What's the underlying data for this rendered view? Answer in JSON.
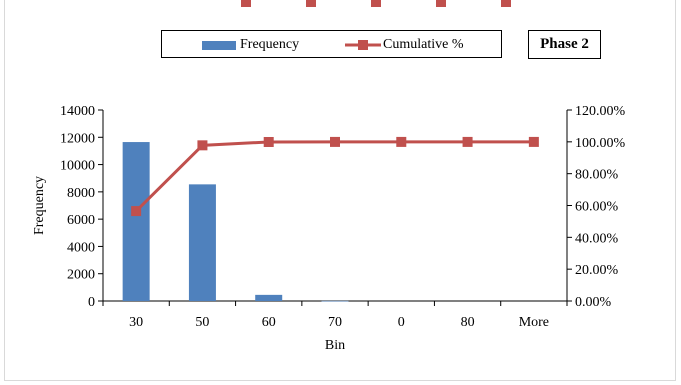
{
  "chart_data": {
    "type": "bar",
    "title": "",
    "annotation": "Phase 2",
    "xlabel": "Bin",
    "ylabel": "Frequency",
    "categories": [
      "30",
      "50",
      "60",
      "70",
      "0",
      "80",
      "More"
    ],
    "ylim": [
      0,
      14000
    ],
    "y_ticks": [
      "0",
      "2000",
      "4000",
      "6000",
      "8000",
      "10000",
      "12000",
      "14000"
    ],
    "y2lim": [
      0,
      120
    ],
    "y2_ticks": [
      "0.00%",
      "20.00%",
      "40.00%",
      "60.00%",
      "80.00%",
      "100.00%",
      "120.00%"
    ],
    "legend_position": "top",
    "grid": false,
    "series": [
      {
        "name": "Frequency",
        "type": "bar",
        "axis": "left",
        "color": "#4f81bd",
        "values": [
          11650,
          8550,
          450,
          10,
          0,
          0,
          0
        ]
      },
      {
        "name": "Cumulative %",
        "type": "line",
        "axis": "right",
        "color": "#c0504d",
        "values": [
          56.5,
          97.8,
          99.9,
          99.95,
          99.95,
          99.95,
          99.95
        ]
      }
    ]
  }
}
